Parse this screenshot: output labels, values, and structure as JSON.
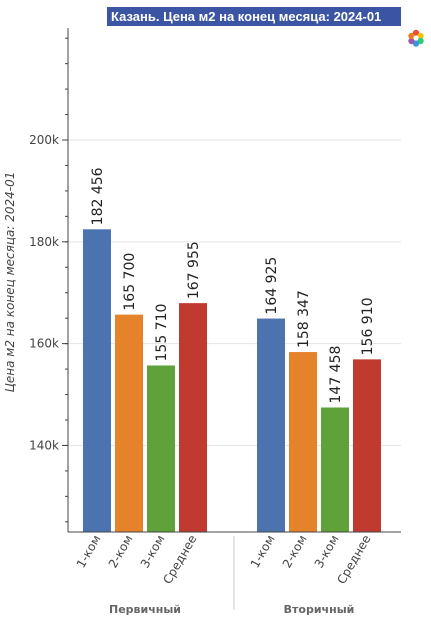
{
  "chart_data": {
    "type": "bar",
    "title": "Казань. Цена м2 на конец месяца: 2024-01",
    "ylabel": "Цена м2 на конец месяца: 2024-01",
    "xlabel": "",
    "ylim": [
      123000,
      222000
    ],
    "yticks": [
      140000,
      160000,
      180000,
      200000
    ],
    "ytick_labels": [
      "140k",
      "160k",
      "180k",
      "200k"
    ],
    "grid": true,
    "groups": [
      {
        "name": "Первичный",
        "categories": [
          "1-ком",
          "2-ком",
          "3-ком",
          "Среднее"
        ],
        "values": [
          182456,
          165700,
          155710,
          167955
        ],
        "labels": [
          "182 456",
          "165 700",
          "155 710",
          "167 955"
        ]
      },
      {
        "name": "Вторичный",
        "categories": [
          "1-ком",
          "2-ком",
          "3-ком",
          "Среднее"
        ],
        "values": [
          164925,
          158347,
          147458,
          156910
        ],
        "labels": [
          "164 925",
          "158 347",
          "147 458",
          "156 910"
        ]
      }
    ],
    "colors": [
      "#4c72b0",
      "#e6822a",
      "#5fa23a",
      "#c13a2f"
    ]
  },
  "toolbar": {
    "logo_icon": "bokeh-logo-icon"
  }
}
